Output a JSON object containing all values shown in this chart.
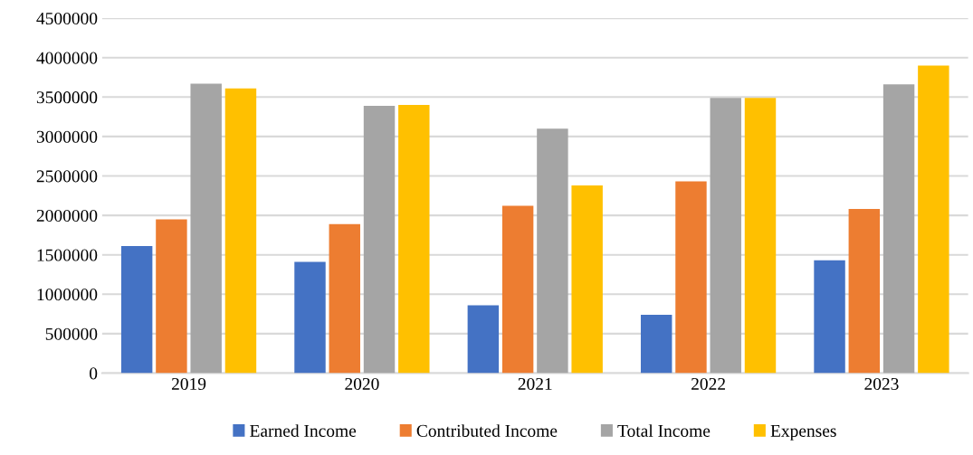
{
  "chart_data": {
    "type": "bar",
    "categories": [
      "2019",
      "2020",
      "2021",
      "2022",
      "2023"
    ],
    "series": [
      {
        "name": "Earned Income",
        "color": "#4472c4",
        "values": [
          1610000,
          1410000,
          860000,
          740000,
          1430000
        ]
      },
      {
        "name": "Contributed Income",
        "color": "#ed7d31",
        "values": [
          1950000,
          1890000,
          2120000,
          2430000,
          2080000
        ]
      },
      {
        "name": "Total Income",
        "color": "#a5a5a5",
        "values": [
          3670000,
          3390000,
          3100000,
          3490000,
          3660000
        ]
      },
      {
        "name": "Expenses",
        "color": "#ffc000",
        "values": [
          3610000,
          3400000,
          2380000,
          3490000,
          3900000
        ]
      }
    ],
    "ylim": [
      0,
      4500000
    ],
    "yticks": [
      0,
      500000,
      1000000,
      1500000,
      2000000,
      2500000,
      3000000,
      3500000,
      4000000,
      4500000
    ],
    "grid": "y",
    "legend": "bottom"
  }
}
